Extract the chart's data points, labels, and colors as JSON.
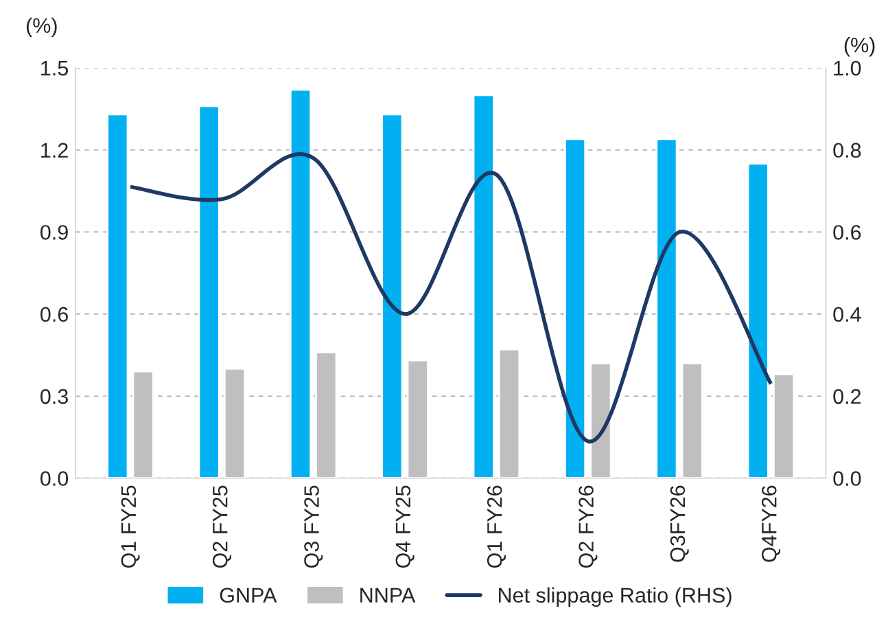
{
  "chart_data": {
    "type": "bar",
    "ylabel": "(%)",
    "y2label": "(%)",
    "categories": [
      "Q1 FY25",
      "Q2 FY25",
      "Q3 FY25",
      "Q4 FY25",
      "Q1 FY26",
      "Q2 FY26",
      "Q3FY26",
      "Q4FY26"
    ],
    "series": [
      {
        "name": "GNPA",
        "color": "#00b0f0",
        "values": [
          1.33,
          1.36,
          1.42,
          1.33,
          1.4,
          1.24,
          1.24,
          1.15
        ]
      },
      {
        "name": "NNPA",
        "color": "#bfbfbf",
        "values": [
          0.39,
          0.4,
          0.46,
          0.43,
          0.47,
          0.42,
          0.42,
          0.38
        ]
      },
      {
        "name": "Net slippage Ratio (RHS)",
        "type": "line",
        "axis": "y2",
        "color": "#1f3864",
        "values": [
          0.71,
          0.68,
          0.78,
          0.4,
          0.74,
          0.09,
          0.6,
          0.23
        ]
      }
    ],
    "ylim": [
      0,
      1.5
    ],
    "yticks": [
      {
        "value": 0,
        "label": "0.0"
      },
      {
        "value": 0.3,
        "label": "0.3"
      },
      {
        "value": 0.6,
        "label": "0.6"
      },
      {
        "value": 0.9,
        "label": "0.9"
      },
      {
        "value": 1.2,
        "label": "1.2"
      },
      {
        "value": 1.5,
        "label": "1.5"
      }
    ],
    "y2lim": [
      0,
      1.0
    ],
    "y2ticks": [
      {
        "value": 0,
        "label": "0.0"
      },
      {
        "value": 0.2,
        "label": "0.2"
      },
      {
        "value": 0.4,
        "label": "0.4"
      },
      {
        "value": 0.6,
        "label": "0.6"
      },
      {
        "value": 0.8,
        "label": "0.8"
      },
      {
        "value": 1.0,
        "label": "1.0"
      }
    ],
    "grid": "y",
    "legend": "bottom"
  }
}
